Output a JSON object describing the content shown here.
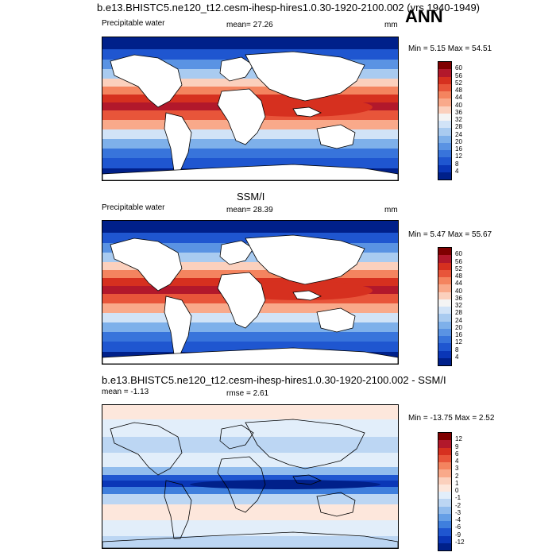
{
  "page": {
    "title_top": "b.e13.BHISTC5.ne120_t12.cesm-ihesp-hires1.0.30-1920-2100.002 (yrs 1940-1949)",
    "season": "ANN"
  },
  "panel1": {
    "var": "Precipitable water",
    "mean": "mean=  27.26",
    "units": "mm",
    "minmax": "Min =   5.15 Max =  54.51",
    "ticks": [
      "60",
      "56",
      "52",
      "48",
      "44",
      "40",
      "36",
      "32",
      "28",
      "24",
      "20",
      "16",
      "12",
      "8",
      "4"
    ]
  },
  "panel2": {
    "heading": "SSM/I",
    "var": "Precipitable water",
    "mean": "mean=  28.39",
    "units": "mm",
    "minmax": "Min =   5.47 Max =  55.67",
    "ticks": [
      "60",
      "56",
      "52",
      "48",
      "44",
      "40",
      "36",
      "32",
      "28",
      "24",
      "20",
      "16",
      "12",
      "8",
      "4"
    ]
  },
  "panel3": {
    "heading": "b.e13.BHISTC5.ne120_t12.cesm-ihesp-hires1.0.30-1920-2100.002 - SSM/I",
    "mean": "mean =  -1.13",
    "rmse": "rmse =   2.61",
    "minmax": "Min = -13.75 Max =   2.52",
    "ticks": [
      "12",
      "9",
      "6",
      "4",
      "3",
      "2",
      "1",
      "0",
      "-1",
      "-2",
      "-3",
      "-4",
      "-6",
      "-9",
      "-12"
    ]
  },
  "colors": {
    "abs": [
      "#7f0000",
      "#b2182b",
      "#d6301f",
      "#e8553a",
      "#f4845f",
      "#f9a98a",
      "#fbd0bd",
      "#f4f4f4",
      "#d1e3f7",
      "#a9cbf0",
      "#7eb0ea",
      "#5a93e3",
      "#3874db",
      "#1f56d0",
      "#0a36b7",
      "#00208a"
    ],
    "diff": [
      "#7f0000",
      "#b2182b",
      "#d6301f",
      "#e8553a",
      "#f4845f",
      "#f9a98a",
      "#fbd0bd",
      "#fde7dc",
      "#e2eefa",
      "#bcd6f3",
      "#91bced",
      "#659fe6",
      "#3f7fdd",
      "#1f56d0",
      "#0a36b7",
      "#00208a"
    ],
    "land": "#ffffff",
    "outline": "#000000"
  }
}
